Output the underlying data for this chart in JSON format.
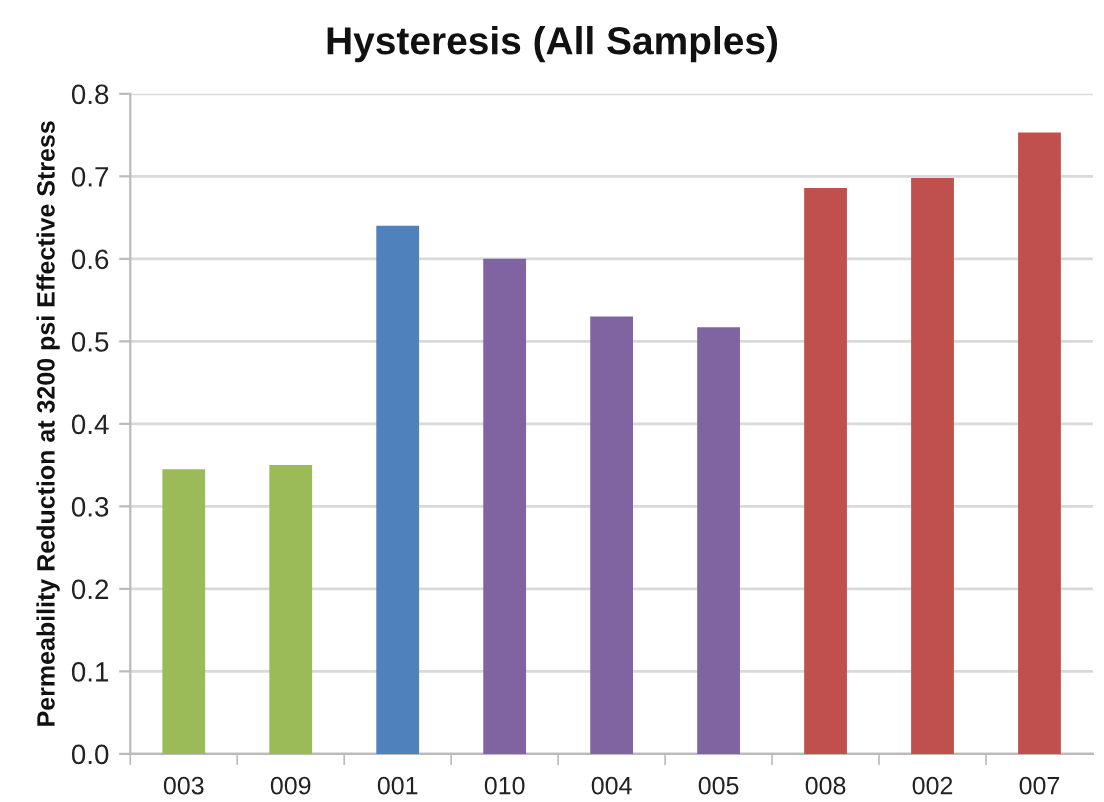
{
  "chart_data": {
    "type": "bar",
    "title": "Hysteresis (All Samples)",
    "ylabel": "Permeability Reduction at 3200 psi Effective Stress",
    "categories": [
      "003",
      "009",
      "001",
      "010",
      "004",
      "005",
      "008",
      "002",
      "007"
    ],
    "values": [
      0.345,
      0.35,
      0.64,
      0.6,
      0.53,
      0.517,
      0.686,
      0.698,
      0.753
    ],
    "colors": [
      "#9bbb59",
      "#9bbb59",
      "#4f81bd",
      "#8064a2",
      "#8064a2",
      "#8064a2",
      "#c0504d",
      "#c0504d",
      "#c0504d"
    ],
    "ylim": [
      0,
      0.8
    ],
    "yticks": [
      {
        "value": 0,
        "label": "0.0"
      },
      0.1,
      0.2,
      0.3,
      0.4,
      0.5,
      0.6,
      0.7,
      0.8
    ],
    "grid": "y"
  }
}
